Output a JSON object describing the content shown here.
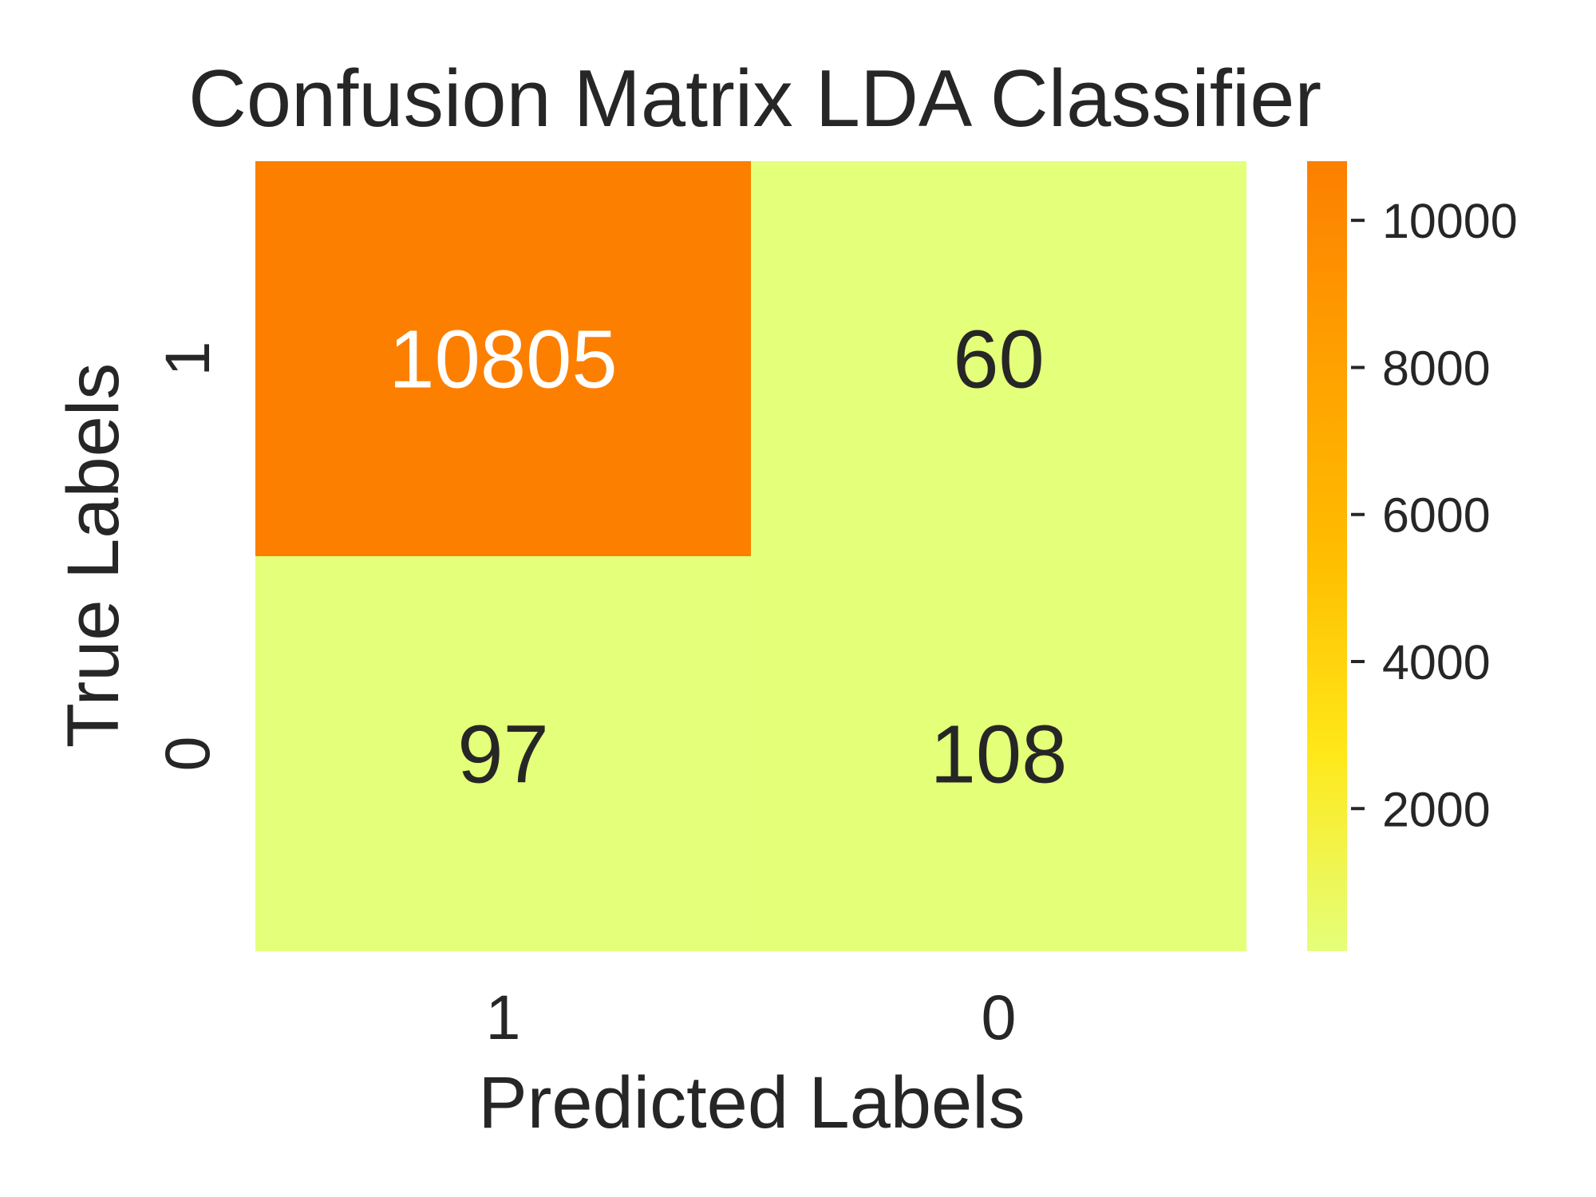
{
  "chart_data": {
    "type": "heatmap",
    "title": "Confusion Matrix LDA Classifier",
    "xlabel": "Predicted Labels",
    "ylabel": "True Labels",
    "x_categories": [
      "1",
      "0"
    ],
    "y_categories": [
      "1",
      "0"
    ],
    "values": [
      [
        10805,
        60
      ],
      [
        97,
        108
      ]
    ],
    "colormap": "Wistia",
    "color_stops": [
      "#e4ff7a",
      "#ffe81a",
      "#ffbd00",
      "#ffa000",
      "#fc7f00"
    ],
    "colorbar": {
      "ticks": [
        2000,
        4000,
        6000,
        8000,
        10000
      ],
      "tick_labels": [
        "2000",
        "4000",
        "6000",
        "8000",
        "10000"
      ],
      "range": [
        60,
        10805
      ]
    },
    "cell_text_colors": {
      "dark": "#262626",
      "light": "#ffffff"
    },
    "grid": false,
    "legend": "colorbar-right"
  }
}
